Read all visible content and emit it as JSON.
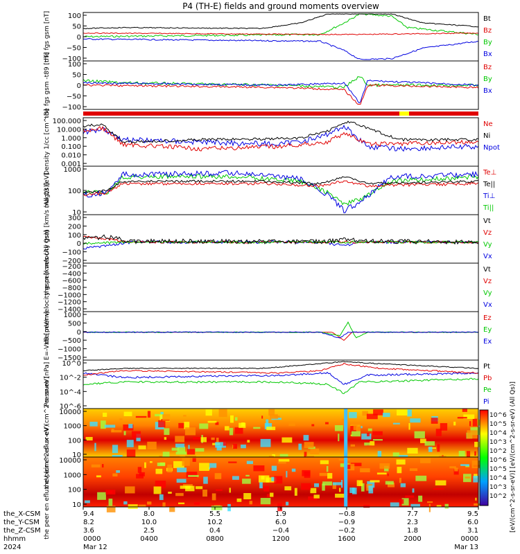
{
  "title": "P4 (TH-E) fields and ground moments overview",
  "colors": {
    "black": "#000000",
    "red": "#e00000",
    "green": "#00c800",
    "blue": "#0000e0",
    "yellow": "#ffff00"
  },
  "panels": [
    {
      "id": "bfield-fgs",
      "ylabel": [
        "the",
        "fgs",
        "gsm",
        "[nT]"
      ],
      "yticks": [
        "100",
        "50",
        "0",
        "−50",
        "−100"
      ],
      "legend": [
        {
          "text": "Bt",
          "color": "black"
        },
        {
          "text": "Bz",
          "color": "red"
        },
        {
          "text": "By",
          "color": "green"
        },
        {
          "text": "Bx",
          "color": "blue"
        }
      ]
    },
    {
      "id": "bfield-fgs-t89",
      "ylabel": [
        "the",
        "fgs",
        "gsm",
        "-t89",
        "[nT]"
      ],
      "yticks": [
        "100",
        "50",
        "0",
        "−50",
        "−100"
      ],
      "legend": [
        {
          "text": "Bz",
          "color": "red"
        },
        {
          "text": "By",
          "color": "green"
        },
        {
          "text": "Bx",
          "color": "blue"
        }
      ]
    },
    {
      "id": "density",
      "ylabel": [
        "Density",
        "1/cc",
        "[cm^-3]"
      ],
      "yticks": [
        "100.000",
        "10.000",
        "1.000",
        "0.100",
        "0.010",
        "0.001"
      ],
      "legend": [
        {
          "text": "Ne",
          "color": "red"
        },
        {
          "text": "Ni",
          "color": "black"
        },
        {
          "text": "Npot",
          "color": "blue"
        }
      ]
    },
    {
      "id": "temperature",
      "ylabel": [
        "magt3",
        "[eV]"
      ],
      "yticks": [
        "1000",
        "100",
        "10"
      ],
      "legend": [
        {
          "text": "Te⊥",
          "color": "red"
        },
        {
          "text": "Te||",
          "color": "black"
        },
        {
          "text": "Ti⊥",
          "color": "blue"
        },
        {
          "text": "Ti||",
          "color": "green"
        }
      ]
    },
    {
      "id": "ion-velocity-peir",
      "ylabel": [
        "the",
        "peir",
        "velocity",
        "gsm",
        "[km/s (All Qs)]"
      ],
      "yticks": [
        "300",
        "200",
        "100",
        "0",
        "−100",
        "−200"
      ],
      "legend": [
        {
          "text": "Vt",
          "color": "black"
        },
        {
          "text": "Vz",
          "color": "red"
        },
        {
          "text": "Vy",
          "color": "green"
        },
        {
          "text": "Vx",
          "color": "blue"
        }
      ]
    },
    {
      "id": "ion-velocity-peer",
      "ylabel": [
        "the",
        "peer",
        "velocity",
        "gsm",
        "[km/s (All Qs)]"
      ],
      "yticks": [
        "−200",
        "−400",
        "−600",
        "−800",
        "−1000",
        "−1200",
        "−1400"
      ],
      "legend": [
        {
          "text": "Vt",
          "color": "black"
        },
        {
          "text": "Vz",
          "color": "red"
        },
        {
          "text": "Vy",
          "color": "green"
        },
        {
          "text": "Vx",
          "color": "blue"
        }
      ]
    },
    {
      "id": "efield",
      "ylabel": [
        "E=-VxB",
        "[mV/m]"
      ],
      "yticks": [
        "1000",
        "500",
        "0",
        "−500",
        "−1000",
        "−1500"
      ],
      "legend": [
        {
          "text": "Ez",
          "color": "red"
        },
        {
          "text": "Ey",
          "color": "green"
        },
        {
          "text": "Ex",
          "color": "blue"
        }
      ]
    },
    {
      "id": "pressure",
      "ylabel": [
        "Pressure",
        "[nPa]"
      ],
      "yticks": [
        "10^0",
        "10^-2",
        "10^-4",
        "10^-6"
      ],
      "legend": [
        {
          "text": "Pt",
          "color": "black"
        },
        {
          "text": "Pb",
          "color": "red"
        },
        {
          "text": "Pe",
          "color": "green"
        },
        {
          "text": "Pi",
          "color": "blue"
        }
      ]
    },
    {
      "id": "ion-spectrogram",
      "ylabel": [
        "the",
        "peir",
        "en",
        "eflux",
        "eV",
        "(cm^2-s-",
        "sr-eV)"
      ],
      "yticks": [
        "10000",
        "1000",
        "100",
        "10"
      ],
      "legend": []
    },
    {
      "id": "electron-spectrogram",
      "ylabel": [
        "the",
        "peer",
        "en",
        "eflux",
        "eV",
        "(cm^2-s-",
        "sr-eV)"
      ],
      "yticks": [
        "10000",
        "1000",
        "100",
        "10"
      ],
      "legend": []
    }
  ],
  "colorbar": {
    "ticks": [
      "10^6",
      "10^5",
      "10^4",
      "10^3",
      "10^2",
      "10^6",
      "10^5",
      "10^4",
      "10^3",
      "10^2"
    ],
    "label": "[eV/(cm^2-s-sr-eV)] [eV/(cm^2-s-sr-eV) (All Qs)]"
  },
  "footer": {
    "row_labels": [
      "the_X-CSM",
      "the_Y-CSM",
      "the_Z-CSM",
      "hhmm",
      "2024"
    ],
    "columns": [
      [
        "9.4",
        "8.2",
        "3.6",
        "0000",
        "Mar 12"
      ],
      [
        "8.0",
        "10.0",
        "2.5",
        "0400",
        ""
      ],
      [
        "5.5",
        "10.2",
        "0.4",
        "0800",
        ""
      ],
      [
        "1.9",
        "6.0",
        "−0.4",
        "1200",
        ""
      ],
      [
        "−0.8",
        "−0.9",
        "−0.2",
        "1600",
        ""
      ],
      [
        "7.7",
        "2.3",
        "1.8",
        "2000",
        ""
      ],
      [
        "9.5",
        "6.0",
        "3.1",
        "0000",
        "Mar 13"
      ]
    ]
  },
  "chart_data": {
    "type": "line",
    "title": "P4 (TH-E) fields and ground moments overview",
    "x": [
      "0000",
      "0400",
      "0800",
      "1200",
      "1600",
      "2000",
      "0000"
    ],
    "x_dates": [
      "Mar 12",
      "",
      "",
      "",
      "",
      "",
      "Mar 13"
    ],
    "series": [
      {
        "panel": "bfield-fgs",
        "name": "Bt",
        "values": [
          40,
          40,
          38,
          45,
          100,
          90,
          40
        ]
      },
      {
        "panel": "bfield-fgs",
        "name": "Bz",
        "values": [
          10,
          8,
          5,
          5,
          0,
          5,
          10
        ]
      },
      {
        "panel": "bfield-fgs",
        "name": "By",
        "values": [
          5,
          3,
          2,
          5,
          100,
          20,
          5
        ]
      },
      {
        "panel": "bfield-fgs",
        "name": "Bx",
        "values": [
          -5,
          -5,
          -8,
          -30,
          -100,
          -60,
          -5
        ]
      },
      {
        "panel": "density",
        "name": "Ni",
        "values": [
          10,
          0.5,
          1.0,
          1.0,
          50,
          0.5,
          0.5
        ]
      },
      {
        "panel": "density",
        "name": "Ne",
        "values": [
          5,
          0.3,
          0.1,
          0.1,
          10,
          0.2,
          0.2
        ]
      },
      {
        "panel": "temperature",
        "name": "Ti||",
        "values": [
          150,
          2000,
          2000,
          1500,
          30,
          800,
          1000
        ]
      },
      {
        "panel": "temperature",
        "name": "Te||",
        "values": [
          50,
          500,
          500,
          400,
          50,
          300,
          300
        ]
      },
      {
        "panel": "pressure",
        "name": "Pt",
        "values": [
          1,
          0.5,
          0.3,
          1,
          5,
          1,
          0.5
        ]
      },
      {
        "panel": "pressure",
        "name": "Pe",
        "values": [
          0.1,
          0.05,
          0.02,
          0.01,
          0.02,
          0.03,
          0.03
        ]
      }
    ]
  }
}
